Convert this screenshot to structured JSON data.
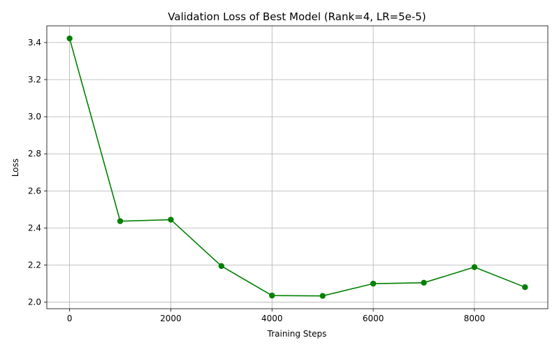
{
  "chart_data": {
    "type": "line",
    "title": "Validation Loss of Best Model (Rank=4, LR=5e-5)",
    "xlabel": "Training Steps",
    "ylabel": "Loss",
    "x": [
      0,
      1000,
      2000,
      3000,
      4000,
      5000,
      6000,
      7000,
      8000,
      9000
    ],
    "series": [
      {
        "values": [
          3.422,
          2.437,
          2.445,
          2.195,
          2.036,
          2.034,
          2.1,
          2.105,
          2.189,
          2.081
        ],
        "color": "#008000",
        "marker": "circle"
      }
    ],
    "xlim": [
      -450,
      9450
    ],
    "ylim": [
      1.965,
      3.49
    ],
    "xticks": [
      0,
      2000,
      4000,
      6000,
      8000
    ],
    "yticks": [
      2.0,
      2.2,
      2.4,
      2.6,
      2.8,
      3.0,
      3.2,
      3.4
    ],
    "xtick_labels": [
      "0",
      "2000",
      "4000",
      "6000",
      "8000"
    ],
    "ytick_labels": [
      "2.0",
      "2.2",
      "2.4",
      "2.6",
      "2.8",
      "3.0",
      "3.2",
      "3.4"
    ],
    "grid": true,
    "legend": "none"
  }
}
